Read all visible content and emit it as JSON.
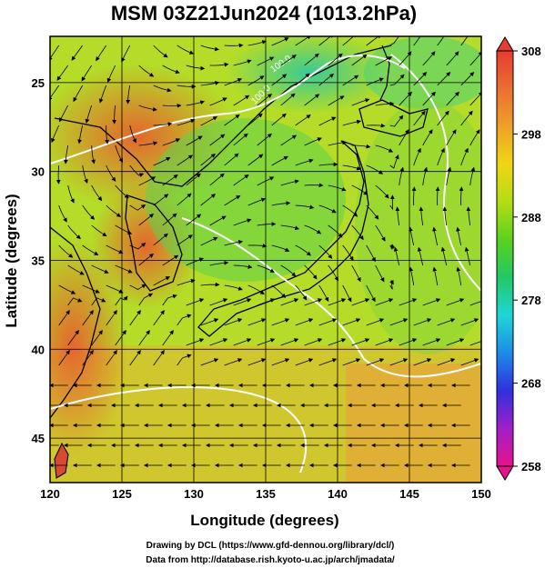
{
  "title": "MSM 03Z21Jun2024 (1013.2hPa)",
  "axes": {
    "xlabel": "Longitude (degrees)",
    "ylabel": "Latitude (degrees)",
    "xticks": [
      "120",
      "125",
      "130",
      "135",
      "140",
      "145",
      "150"
    ],
    "yticks": [
      "45",
      "40",
      "35",
      "30",
      "25"
    ]
  },
  "colorbar": {
    "ticks": [
      "308",
      "298",
      "288",
      "278",
      "268",
      "258"
    ],
    "stops": [
      "#e8128c",
      "#a020c8",
      "#3030e0",
      "#1c8ce8",
      "#1ed6d6",
      "#22c864",
      "#5ad21e",
      "#b4dc14",
      "#f0d614",
      "#f0a028",
      "#eb6e32",
      "#e63c32"
    ]
  },
  "contour_labels": [
    "100.0",
    "100.0"
  ],
  "credits": {
    "line1": "Drawing by DCL (https://www.gfd-dennou.org/library/dcl/)",
    "line2": "Data from http://database.rish.kyoto-u.ac.jp/arch/jmadata/"
  },
  "chart_data": {
    "type": "heatmap",
    "x_range": [
      120,
      150
    ],
    "y_range": [
      22.5,
      47.6
    ],
    "xticks": [
      120,
      125,
      130,
      135,
      140,
      145,
      150
    ],
    "yticks": [
      25,
      30,
      35,
      40,
      45
    ],
    "colorbar_range": [
      258,
      308
    ],
    "colorbar_ticks": [
      258,
      268,
      278,
      288,
      298,
      308
    ],
    "grid": true,
    "overlays": [
      "streamlines",
      "white contour lines",
      "coastlines"
    ]
  }
}
